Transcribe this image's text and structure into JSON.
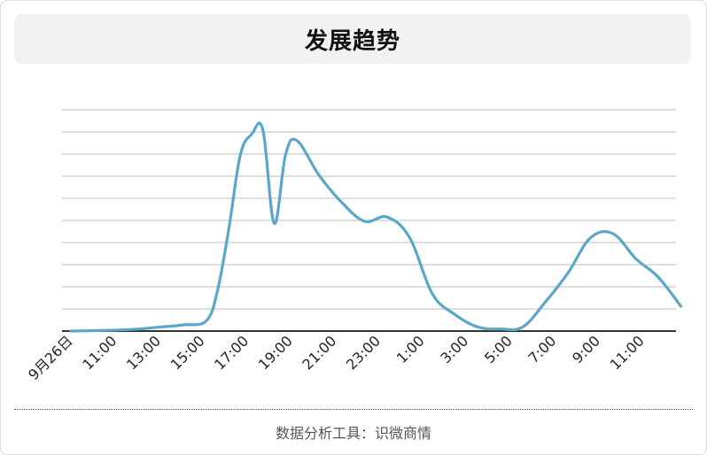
{
  "title": "发展趋势",
  "footer": "数据分析工具：识微商情",
  "colors": {
    "line": "#5aa7c9",
    "grid": "#bdbdbd",
    "axis": "#333333",
    "title_bg": "#f2f2f2"
  },
  "chart_data": {
    "type": "line",
    "title": "发展趋势",
    "xlabel": "",
    "ylabel": "",
    "grid": true,
    "legend": "none",
    "y_tick_labels_shown": false,
    "x_tick_labels": [
      "9月26日",
      "11:00",
      "13:00",
      "15:00",
      "17:00",
      "19:00",
      "21:00",
      "23:00",
      "1:00",
      "3:00",
      "5:00",
      "7:00",
      "9:00",
      "11:00"
    ],
    "ylim": [
      0,
      100
    ],
    "series": [
      {
        "values": [
          [
            0,
            0
          ],
          [
            1,
            0.2
          ],
          [
            2,
            0.5
          ],
          [
            3,
            1
          ],
          [
            4,
            2
          ],
          [
            5,
            3
          ],
          [
            6,
            5
          ],
          [
            6.5,
            20
          ],
          [
            7,
            50
          ],
          [
            7.5,
            85
          ],
          [
            8,
            95
          ],
          [
            8.5,
            97
          ],
          [
            9,
            52
          ],
          [
            9.5,
            85
          ],
          [
            10,
            92
          ],
          [
            11,
            75
          ],
          [
            12,
            62
          ],
          [
            13,
            53
          ],
          [
            14,
            55
          ],
          [
            15,
            45
          ],
          [
            16,
            18
          ],
          [
            17,
            8
          ],
          [
            18,
            2
          ],
          [
            19,
            1
          ],
          [
            20,
            2
          ],
          [
            21,
            14
          ],
          [
            22,
            28
          ],
          [
            23,
            45
          ],
          [
            24,
            47
          ],
          [
            25,
            35
          ],
          [
            26,
            26
          ],
          [
            27,
            12
          ]
        ]
      }
    ]
  }
}
